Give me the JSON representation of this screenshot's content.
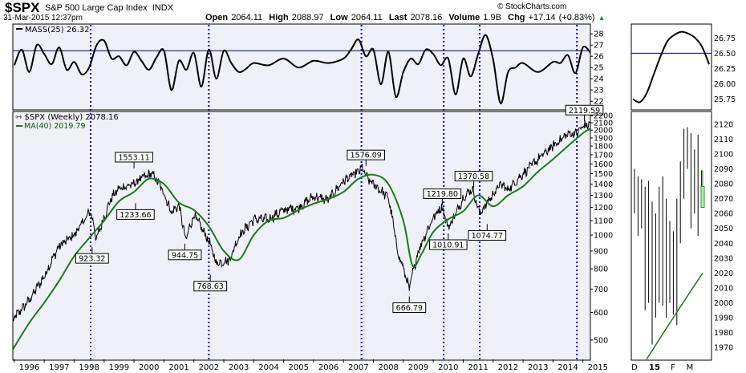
{
  "header": {
    "symbol": "$SPX",
    "company": "S&P 500 Large Cap Index",
    "exchange": "INDX",
    "timestamp": "31-Mar-2015 12:37pm",
    "brand": "© StockCharts.com",
    "open_label": "Open",
    "open": "2064.11",
    "high_label": "High",
    "high": "2088.97",
    "low_label": "Low",
    "low": "2064.11",
    "last_label": "Last",
    "last": "2078.16",
    "volume_label": "Volume",
    "volume": "1.9B",
    "chg_label": "Chg",
    "chg": "+17.14 (+0.83%)"
  },
  "colors": {
    "background": "#ffffff",
    "panel_bg": "#f0f0f8",
    "price": "#000000",
    "ma": "#1a7a1a",
    "reference": "#000080",
    "vertical_markers": "#0000cc",
    "label_green": "#006400",
    "accent_green": "#2f8f2f"
  },
  "chart_data": [
    {
      "id": "mass_index",
      "type": "line",
      "legend": "MASS(25) 26.32",
      "y_ticks": [
        22,
        23,
        24,
        25,
        26,
        27,
        28
      ],
      "ylim": [
        21.3,
        28.8
      ],
      "reference_line": 26.5,
      "x": [
        1996,
        1996.25,
        1996.5,
        1996.75,
        1997,
        1997.25,
        1997.5,
        1997.75,
        1998,
        1998.25,
        1998.5,
        1998.75,
        1999,
        1999.25,
        1999.5,
        1999.75,
        2000,
        2000.25,
        2000.5,
        2000.75,
        2001,
        2001.25,
        2001.5,
        2001.75,
        2002,
        2002.25,
        2002.5,
        2002.75,
        2003,
        2003.25,
        2003.5,
        2003.75,
        2004,
        2004.5,
        2005,
        2005.5,
        2006,
        2006.5,
        2007,
        2007.25,
        2007.5,
        2007.75,
        2008,
        2008.25,
        2008.5,
        2008.75,
        2009,
        2009.25,
        2009.5,
        2009.75,
        2010,
        2010.25,
        2010.5,
        2010.75,
        2011,
        2011.25,
        2011.5,
        2011.75,
        2012,
        2012.25,
        2012.5,
        2012.75,
        2013,
        2013.5,
        2014,
        2014.25,
        2014.5,
        2014.75,
        2015,
        2015.25
      ],
      "y": [
        25.2,
        26.6,
        24.6,
        27.0,
        26.2,
        25.3,
        26.8,
        24.8,
        25.5,
        24.4,
        25.0,
        27.0,
        27.4,
        25.8,
        26.0,
        25.2,
        26.4,
        25.6,
        24.8,
        25.9,
        26.5,
        23.0,
        25.6,
        24.8,
        26.3,
        23.3,
        26.6,
        24.0,
        26.5,
        25.4,
        24.6,
        24.9,
        25.4,
        25.2,
        25.8,
        25.0,
        25.6,
        25.4,
        25.8,
        26.6,
        27.5,
        26.0,
        26.6,
        23.5,
        26.4,
        22.4,
        24.6,
        25.8,
        25.3,
        26.6,
        26.2,
        25.2,
        25.8,
        22.6,
        25.8,
        24.2,
        26.2,
        27.9,
        25.7,
        21.8,
        24.6,
        25.0,
        25.4,
        24.6,
        25.5,
        25.4,
        26.1,
        24.5,
        26.8,
        26.32
      ],
      "zoom_ticks": [
        25.75,
        26.0,
        26.25,
        26.5,
        26.75
      ],
      "zoom_ylim": [
        25.6,
        26.95
      ],
      "zoom_y": [
        25.75,
        25.7,
        25.85,
        26.15,
        26.45,
        26.7,
        26.8,
        26.85,
        26.82,
        26.75,
        26.6,
        26.32
      ]
    },
    {
      "id": "price_weekly",
      "type": "line",
      "scale": "log",
      "legend_price": "$SPX (Weekly) 2078.16",
      "legend_ma": "MA(40) 2019.79",
      "x_tick_labels": [
        "1996",
        "1997",
        "1998",
        "1999",
        "2000",
        "2001",
        "2002",
        "2003",
        "2004",
        "2005",
        "2006",
        "2007",
        "2008",
        "2009",
        "2010",
        "2011",
        "2012",
        "2013",
        "2014",
        "2015"
      ],
      "y_ticks": [
        500,
        600,
        700,
        800,
        900,
        1000,
        1100,
        1200,
        1300,
        1400,
        1500,
        1600,
        1700,
        1800,
        1900,
        2000,
        2100,
        2200
      ],
      "ylim": [
        440,
        2250
      ],
      "x_range": [
        1995.95,
        2015.25
      ],
      "vertical_markers": [
        1998.55,
        2002.5,
        2007.6,
        2010.35,
        2011.55,
        2014.8
      ],
      "price": {
        "x": [
          1995.95,
          1996.5,
          1997,
          1997.5,
          1998,
          1998.55,
          1998.75,
          1999.25,
          1999.5,
          2000,
          2000.2,
          2000.6,
          2000.75,
          2001,
          2001.25,
          2001.5,
          2001.72,
          2002,
          2002.5,
          2002.75,
          2003.2,
          2003.5,
          2004,
          2004.5,
          2005,
          2005.5,
          2006,
          2006.5,
          2007,
          2007.5,
          2007.62,
          2007.8,
          2008,
          2008.5,
          2008.8,
          2009.2,
          2009.5,
          2010,
          2010.28,
          2010.5,
          2010.75,
          2011,
          2011.3,
          2011.55,
          2011.75,
          2012,
          2012.25,
          2012.5,
          2013,
          2013.5,
          2014,
          2014.5,
          2014.8,
          2015,
          2015.25
        ],
        "y": [
          570,
          650,
          760,
          930,
          1000,
          1170,
          970,
          1280,
          1360,
          1400,
          1450,
          1500,
          1440,
          1320,
          1160,
          1220,
          965,
          1140,
          960,
          830,
          850,
          990,
          1110,
          1110,
          1180,
          1200,
          1290,
          1260,
          1430,
          1520,
          1560,
          1450,
          1400,
          1280,
          900,
          700,
          900,
          1120,
          1210,
          1050,
          1150,
          1280,
          1360,
          1150,
          1220,
          1310,
          1400,
          1350,
          1500,
          1650,
          1800,
          1950,
          1960,
          2050,
          2078
        ]
      },
      "ma40": {
        "x": [
          1995.95,
          1996.5,
          1997,
          1997.5,
          1998,
          1998.5,
          1999,
          1999.5,
          2000,
          2000.5,
          2001,
          2001.5,
          2002,
          2002.5,
          2003,
          2003.5,
          2004,
          2004.5,
          2005,
          2005.5,
          2006,
          2006.5,
          2007,
          2007.5,
          2008,
          2008.5,
          2009,
          2009.3,
          2009.6,
          2010,
          2010.5,
          2011,
          2011.5,
          2012,
          2012.5,
          2013,
          2013.5,
          2014,
          2014.5,
          2015,
          2015.25
        ],
        "y": [
          470,
          560,
          640,
          740,
          870,
          980,
          1100,
          1250,
          1330,
          1450,
          1400,
          1240,
          1180,
          1060,
          900,
          850,
          1000,
          1100,
          1120,
          1180,
          1230,
          1270,
          1330,
          1450,
          1490,
          1400,
          1100,
          820,
          880,
          1020,
          1110,
          1170,
          1300,
          1210,
          1300,
          1380,
          1520,
          1650,
          1800,
          1960,
          2019.79
        ]
      },
      "annotations": [
        {
          "label": "1553.11",
          "x": 2000.0,
          "y": 1553.11
        },
        {
          "label": "1233.66",
          "x": 2000.05,
          "y": 1233.66
        },
        {
          "label": "923.32",
          "x": 1998.6,
          "y": 923.32
        },
        {
          "label": "944.75",
          "x": 2001.7,
          "y": 944.75
        },
        {
          "label": "768.63",
          "x": 2002.55,
          "y": 768.63
        },
        {
          "label": "1576.09",
          "x": 2007.75,
          "y": 1576.09
        },
        {
          "label": "666.79",
          "x": 2009.2,
          "y": 666.79
        },
        {
          "label": "1219.80",
          "x": 2010.3,
          "y": 1219.8
        },
        {
          "label": "1010.91",
          "x": 2010.5,
          "y": 1010.91
        },
        {
          "label": "1370.58",
          "x": 2011.35,
          "y": 1370.58
        },
        {
          "label": "1074.77",
          "x": 2011.8,
          "y": 1074.77
        },
        {
          "label": "2119.59",
          "x": 2015.05,
          "y": 2119.59
        }
      ]
    },
    {
      "id": "daily_zoom",
      "type": "ohlc",
      "x_tick_labels": [
        "D",
        "15",
        "F",
        "M"
      ],
      "y_ticks": [
        1970,
        1980,
        1990,
        2000,
        2010,
        2020,
        2030,
        2040,
        2050,
        2060,
        2070,
        2080,
        2090,
        2100,
        2110,
        2120
      ],
      "ylim": [
        1962,
        2128
      ],
      "bars": [
        {
          "high": 2090,
          "low": 2060
        },
        {
          "high": 2085,
          "low": 2045
        },
        {
          "high": 2083,
          "low": 2050
        },
        {
          "high": 2078,
          "low": 1995
        },
        {
          "high": 2082,
          "low": 2000
        },
        {
          "high": 2068,
          "low": 1972
        },
        {
          "high": 2060,
          "low": 1990
        },
        {
          "high": 2078,
          "low": 2000
        },
        {
          "high": 2085,
          "low": 1998
        },
        {
          "high": 2070,
          "low": 1990
        },
        {
          "high": 2055,
          "low": 2000
        },
        {
          "high": 2048,
          "low": 1992
        },
        {
          "high": 2070,
          "low": 1985
        },
        {
          "high": 2095,
          "low": 2040
        },
        {
          "high": 2117,
          "low": 2070
        },
        {
          "high": 2118,
          "low": 2090
        },
        {
          "high": 2114,
          "low": 2050
        },
        {
          "high": 2103,
          "low": 2060
        },
        {
          "high": 2113,
          "low": 2045
        },
        {
          "high": 2089,
          "low": 2064
        }
      ],
      "last_candle": {
        "open": 2064.11,
        "high": 2088.97,
        "low": 2064.11,
        "close": 2078.16
      },
      "ma": {
        "start": 1962,
        "end": 2020
      }
    }
  ]
}
